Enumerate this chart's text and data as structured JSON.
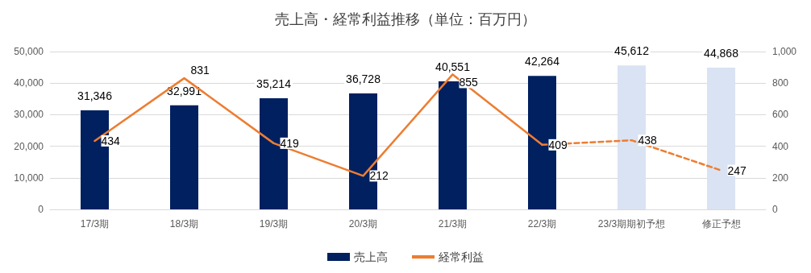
{
  "chart_data": {
    "type": "bar",
    "title": "売上高・経常利益推移（単位：百万円）",
    "categories": [
      "17/3期",
      "18/3期",
      "19/3期",
      "20/3期",
      "21/3期",
      "22/3期",
      "23/3期期初予想",
      "修正予想"
    ],
    "series": [
      {
        "name": "売上高",
        "type": "bar",
        "colors": [
          "#002060",
          "#002060",
          "#002060",
          "#002060",
          "#002060",
          "#002060",
          "#dae3f3",
          "#dae3f3"
        ],
        "values": [
          31346,
          32991,
          35214,
          36728,
          40551,
          42264,
          45612,
          44868
        ],
        "value_labels": [
          "31,346",
          "32,991",
          "35,214",
          "36,728",
          "40,551",
          "42,264",
          "45,612",
          "44,868"
        ]
      },
      {
        "name": "経常利益",
        "type": "line",
        "axis": "y2",
        "color": "#ed7d31",
        "line_style": "solid",
        "values": [
          434,
          831,
          419,
          212,
          855,
          409,
          null,
          null
        ],
        "value_labels": [
          "434",
          "831",
          "419",
          "212",
          "855",
          "409",
          null,
          null
        ]
      },
      {
        "type": "line",
        "axis": "y2",
        "color": "#ed7d31",
        "line_style": "dashed",
        "values": [
          null,
          null,
          null,
          null,
          null,
          409,
          438,
          247
        ],
        "value_labels": [
          null,
          null,
          null,
          null,
          null,
          null,
          "438",
          "247"
        ]
      }
    ],
    "ylim": [
      0,
      50000
    ],
    "yticks": [
      0,
      {
        "value": 10000,
        "label": "10,000"
      },
      {
        "value": 20000,
        "label": "20,000"
      },
      {
        "value": 30000,
        "label": "30,000"
      },
      {
        "value": 40000,
        "label": "40,000"
      },
      {
        "value": 50000,
        "label": "50,000"
      }
    ],
    "y2lim": [
      0,
      1000
    ],
    "y2ticks": [
      0,
      200,
      400,
      600,
      800,
      {
        "value": 1000,
        "label": "1,000"
      }
    ],
    "grid": "y",
    "legend": "bottom",
    "marker": "none"
  }
}
